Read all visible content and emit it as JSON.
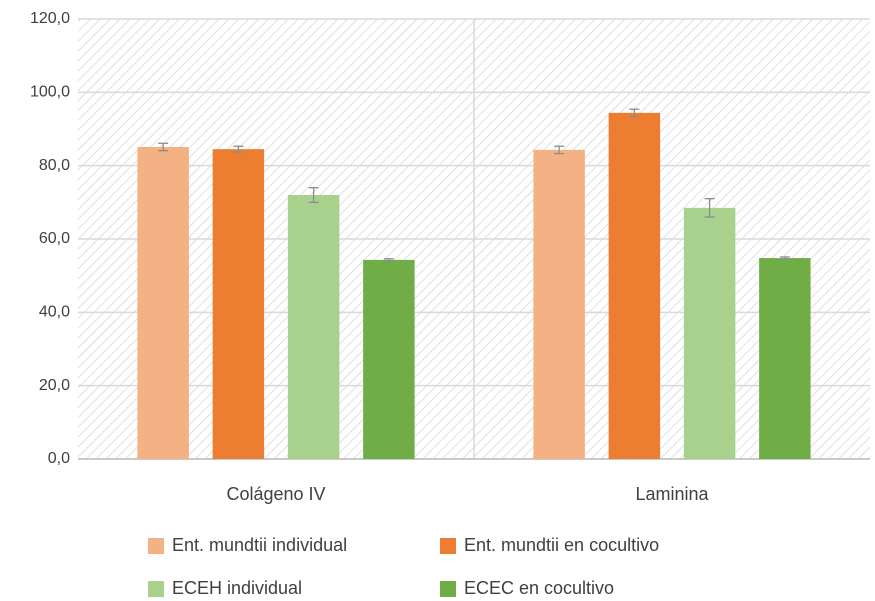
{
  "chart_data": {
    "type": "bar",
    "categories": [
      "Colágeno IV",
      "Laminina"
    ],
    "series": [
      {
        "name": "Ent. mundtii individual",
        "color": "#f4b183",
        "values": [
          85.1,
          84.3
        ],
        "errors": [
          1.0,
          1.0
        ]
      },
      {
        "name": "Ent. mundtii en cocultivo",
        "color": "#ed7d31",
        "values": [
          84.5,
          94.4
        ],
        "errors": [
          0.8,
          1.0
        ]
      },
      {
        "name": "ECEH individual",
        "color": "#a9d18e",
        "values": [
          72.0,
          68.5
        ],
        "errors": [
          2.0,
          2.5
        ]
      },
      {
        "name": "ECEC en cocultivo",
        "color": "#70ad47",
        "values": [
          54.3,
          54.8
        ],
        "errors": [
          0.3,
          0.3
        ]
      }
    ],
    "ylim": [
      0,
      120
    ],
    "yticks": [
      {
        "value": 0,
        "label": "0,0"
      },
      {
        "value": 20,
        "label": "20,0"
      },
      {
        "value": 40,
        "label": "40,0"
      },
      {
        "value": 60,
        "label": "60,0"
      },
      {
        "value": 80,
        "label": "80,0"
      },
      {
        "value": 100,
        "label": "100,0"
      },
      {
        "value": 120,
        "label": "120,0"
      }
    ],
    "grid": true,
    "legend": "bottom"
  }
}
